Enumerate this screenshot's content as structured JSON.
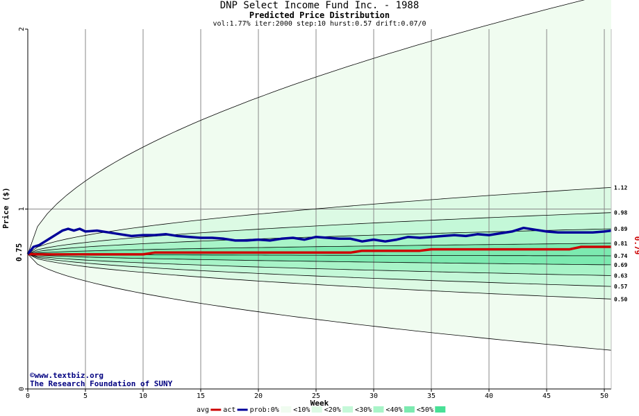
{
  "chart_data": {
    "type": "area",
    "title": "DNP Select Income Fund Inc. - 1988",
    "subtitle": "Predicted Price Distribution",
    "params": "vol:1.77% iter:2000 step:10 hurst:0.57 drift:0.07/0",
    "xlabel": "Week",
    "ylabel": "Price ($)",
    "xlim": [
      0,
      50.6
    ],
    "ylim": [
      0,
      2
    ],
    "xticks": [
      "0",
      "5",
      "10",
      "15",
      "20",
      "25",
      "30",
      "35",
      "40",
      "45",
      "50"
    ],
    "yticks": [
      "0",
      "1",
      "2"
    ],
    "start_price_label": "0.75",
    "start_price": 0.75,
    "last_price_label": "0.79",
    "grid": true,
    "percentile_lines": [
      {
        "label": "",
        "end": 2.2
      },
      {
        "label": "1.12",
        "end": 1.12
      },
      {
        "label": "0.98",
        "end": 0.98
      },
      {
        "label": "0.89",
        "end": 0.89
      },
      {
        "label": "0.81",
        "end": 0.81
      },
      {
        "label": "0.74",
        "end": 0.74
      },
      {
        "label": "0.69",
        "end": 0.69
      },
      {
        "label": "0.63",
        "end": 0.63
      },
      {
        "label": "0.57",
        "end": 0.57
      },
      {
        "label": "0.50",
        "end": 0.5
      },
      {
        "label": "",
        "end": 0.215
      }
    ],
    "band_colors": {
      "p0": "#f0fcf0",
      "p10": "#dcfae4",
      "p20": "#c4f8d8",
      "p30": "#a8f4c8",
      "p40": "#7ceab0",
      "p50": "#48e096"
    },
    "series": [
      {
        "name": "avg",
        "color": "#cc0000",
        "x": [
          0,
          1,
          2,
          3,
          4,
          5,
          6,
          7,
          8,
          9,
          10,
          11,
          12,
          13,
          14,
          15,
          16,
          17,
          18,
          19,
          20,
          21,
          22,
          23,
          24,
          25,
          26,
          27,
          28,
          29,
          30,
          31,
          32,
          33,
          34,
          35,
          36,
          37,
          38,
          39,
          40,
          41,
          42,
          43,
          44,
          45,
          46,
          47,
          48,
          49,
          50,
          50.6
        ],
        "values": [
          0.75,
          0.748,
          0.748,
          0.748,
          0.748,
          0.748,
          0.748,
          0.748,
          0.748,
          0.748,
          0.748,
          0.758,
          0.758,
          0.758,
          0.758,
          0.758,
          0.758,
          0.758,
          0.758,
          0.758,
          0.758,
          0.758,
          0.758,
          0.758,
          0.758,
          0.758,
          0.758,
          0.758,
          0.758,
          0.768,
          0.768,
          0.768,
          0.768,
          0.768,
          0.768,
          0.776,
          0.776,
          0.776,
          0.776,
          0.776,
          0.776,
          0.776,
          0.776,
          0.776,
          0.776,
          0.776,
          0.776,
          0.776,
          0.79,
          0.79,
          0.79,
          0.79
        ]
      },
      {
        "name": "act",
        "color": "#000099",
        "x": [
          0,
          0.5,
          1,
          1.5,
          2,
          2.5,
          3,
          3.5,
          4,
          4.5,
          5,
          6,
          7,
          8,
          9,
          10,
          11,
          12,
          13,
          14,
          15,
          16,
          17,
          18,
          19,
          20,
          21,
          22,
          23,
          24,
          25,
          26,
          27,
          28,
          29,
          30,
          31,
          32,
          33,
          34,
          35,
          36,
          37,
          38,
          39,
          40,
          41,
          42,
          43,
          44,
          45,
          46,
          47,
          48,
          49,
          50,
          50.6
        ],
        "values": [
          0.75,
          0.79,
          0.8,
          0.82,
          0.84,
          0.86,
          0.88,
          0.89,
          0.88,
          0.89,
          0.875,
          0.88,
          0.87,
          0.86,
          0.85,
          0.855,
          0.855,
          0.86,
          0.85,
          0.845,
          0.84,
          0.84,
          0.835,
          0.825,
          0.825,
          0.83,
          0.825,
          0.835,
          0.84,
          0.83,
          0.845,
          0.84,
          0.835,
          0.835,
          0.82,
          0.83,
          0.82,
          0.83,
          0.845,
          0.84,
          0.845,
          0.85,
          0.855,
          0.85,
          0.86,
          0.855,
          0.865,
          0.875,
          0.895,
          0.885,
          0.875,
          0.87,
          0.87,
          0.87,
          0.87,
          0.875,
          0.88
        ]
      }
    ],
    "legend": [
      {
        "key": "avg",
        "label": "avg",
        "swatch": "#cc0000",
        "type": "line"
      },
      {
        "key": "act",
        "label": "act",
        "swatch": "#000099",
        "type": "line"
      },
      {
        "key": "p0",
        "label": "prob:0%",
        "swatch": "#f0fcf0",
        "type": "box"
      },
      {
        "key": "p10",
        "label": "<10%",
        "swatch": "#dcfae4",
        "type": "box"
      },
      {
        "key": "p20",
        "label": "<20%",
        "swatch": "#c4f8d8",
        "type": "box"
      },
      {
        "key": "p30",
        "label": "<30%",
        "swatch": "#a8f4c8",
        "type": "box"
      },
      {
        "key": "p40",
        "label": "<40%",
        "swatch": "#7ceab0",
        "type": "box"
      },
      {
        "key": "p50",
        "label": "<50%",
        "swatch": "#48e096",
        "type": "box"
      }
    ],
    "copyright_line1": "©www.textbiz.org",
    "copyright_line2": "The Research Foundation of SUNY"
  }
}
